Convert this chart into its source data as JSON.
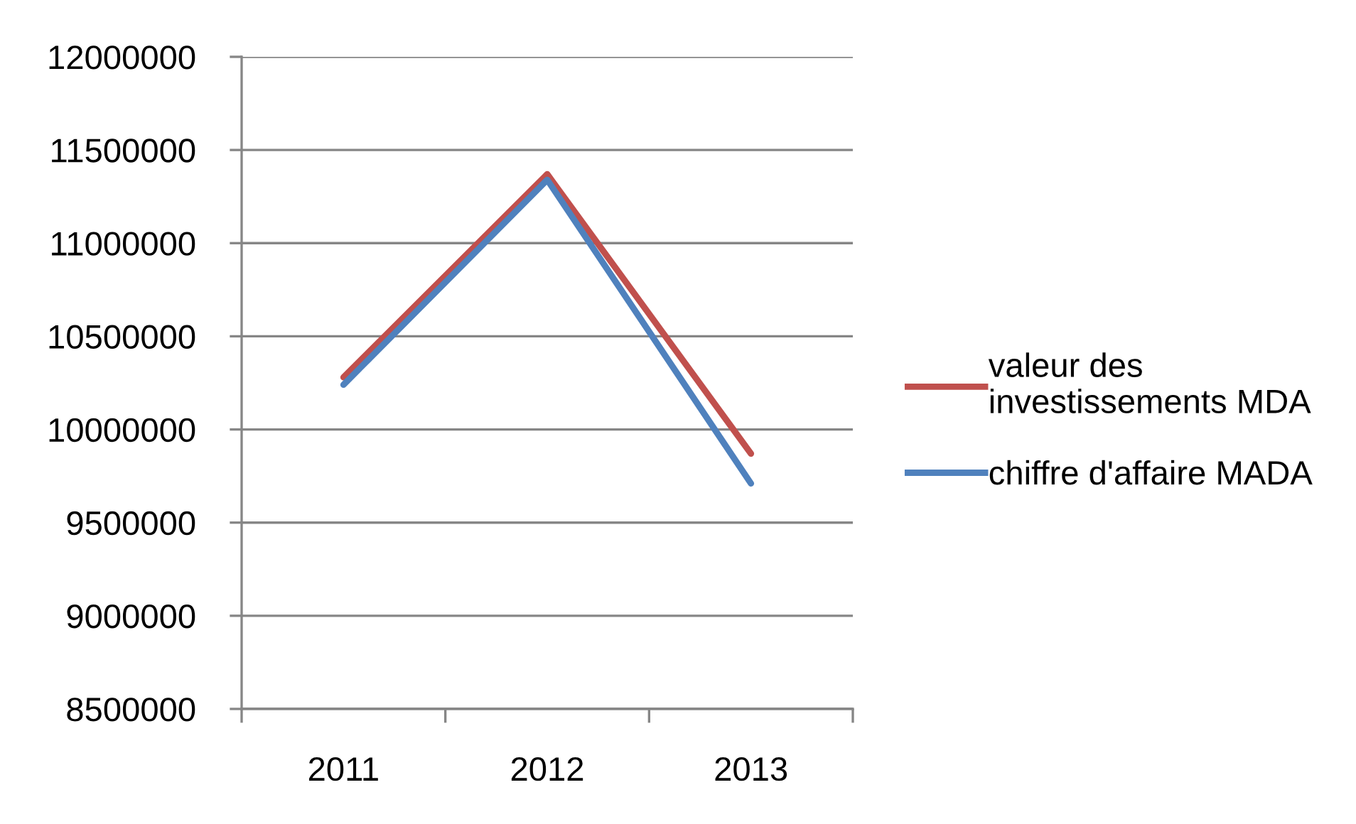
{
  "chart_data": {
    "type": "line",
    "categories": [
      "2011",
      "2012",
      "2013"
    ],
    "series": [
      {
        "name": "valeur des investissements MDA",
        "color": "#c0504d",
        "values": [
          10280000,
          11370000,
          9870000
        ]
      },
      {
        "name": "chiffre d'affaire MADA",
        "color": "#4f81bd",
        "values": [
          10240000,
          11340000,
          9710000
        ]
      }
    ],
    "ylim": [
      8500000,
      12000000
    ],
    "yticks": [
      8500000,
      9000000,
      9500000,
      10000000,
      10500000,
      11000000,
      11500000,
      12000000
    ],
    "grid": "y",
    "legend": "right",
    "line_style": "solid"
  }
}
